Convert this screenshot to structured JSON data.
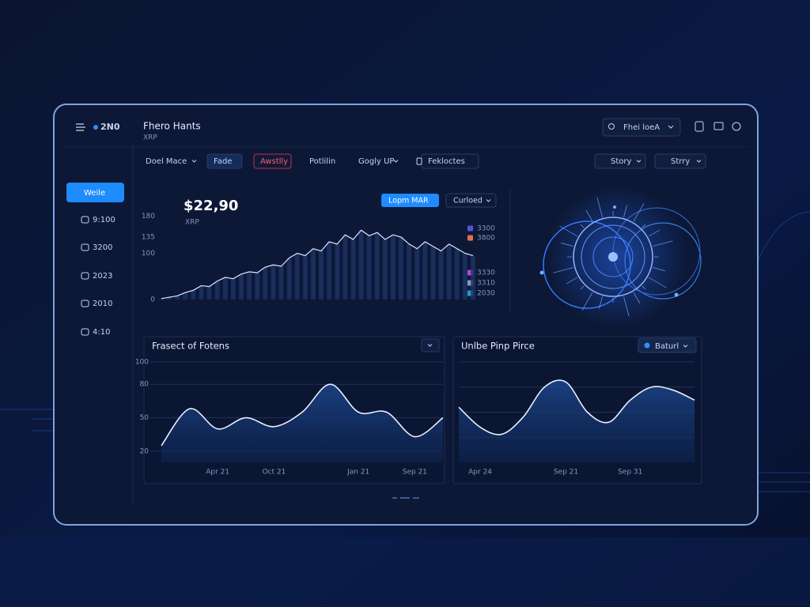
{
  "header": {
    "logo": "2N0",
    "title": "Fhero Hants",
    "subtitle": "XRP",
    "search": "Fhei loeA"
  },
  "toolbar": {
    "tabs": [
      "Doel Mace",
      "Fade",
      "Awstlly",
      "Potlilin",
      "Gogly UP",
      "Fekloctes"
    ],
    "filters": [
      "Story",
      "Strry"
    ]
  },
  "sidebar": {
    "items": [
      "Weile",
      "9:100",
      "3200",
      "2023",
      "2010",
      "4:10"
    ]
  },
  "chart_data": [
    {
      "type": "line",
      "title": "$22,90",
      "subtitle": "XRP",
      "buttons": [
        "Lopm MAR",
        "Curloed"
      ],
      "categories": [
        null,
        null,
        null,
        null,
        null,
        null,
        null,
        null,
        null,
        null,
        null,
        null,
        null,
        null,
        null,
        null,
        null,
        null,
        null,
        null,
        null,
        null,
        null,
        null,
        null,
        null,
        null,
        null,
        null,
        null,
        null,
        null,
        null,
        null,
        null,
        null,
        null,
        null,
        null,
        null
      ],
      "values": [
        2,
        5,
        8,
        15,
        20,
        30,
        28,
        40,
        48,
        45,
        55,
        60,
        58,
        70,
        75,
        72,
        90,
        100,
        95,
        110,
        105,
        125,
        120,
        140,
        130,
        150,
        138,
        145,
        130,
        140,
        135,
        120,
        110,
        125,
        115,
        105,
        120,
        110,
        100,
        95
      ],
      "color": "#dfe8ff",
      "bar_color": "#1d3566",
      "ylim": [
        0,
        200
      ],
      "yticks": [
        0,
        100,
        135,
        180
      ],
      "legend": [
        {
          "label": "3300",
          "color": "#5b4fd6"
        },
        {
          "label": "3800",
          "color": "#e0704a"
        },
        {
          "label": "3330",
          "color": "#c040e0"
        },
        {
          "label": "3310",
          "color": "#8a9ab8"
        },
        {
          "label": "2030",
          "color": "#20a0c0"
        }
      ]
    },
    {
      "type": "line",
      "title": "Frasect of Fotens",
      "categories": [
        null,
        null,
        "Apr 21",
        null,
        "Oct 21",
        null,
        null,
        "Jan 21",
        null,
        "Sep 21",
        null
      ],
      "values": [
        25,
        58,
        40,
        50,
        42,
        55,
        80,
        55,
        55,
        33,
        50
      ],
      "color": "#e8eeff",
      "ylim": [
        10,
        100
      ],
      "yticks": [
        20,
        50,
        80,
        100
      ],
      "grid": true
    },
    {
      "type": "line",
      "title": "Unlbe Pinp Pirce",
      "dropdown": "Baturl",
      "categories": [
        null,
        "Apr 24",
        null,
        null,
        null,
        "Sep 21",
        null,
        null,
        "Sep 31",
        null,
        null,
        null
      ],
      "values": [
        55,
        35,
        28,
        45,
        75,
        80,
        50,
        40,
        62,
        75,
        72,
        62
      ],
      "color": "#e8eeff",
      "ylim": [
        0,
        100
      ],
      "grid": true
    }
  ]
}
